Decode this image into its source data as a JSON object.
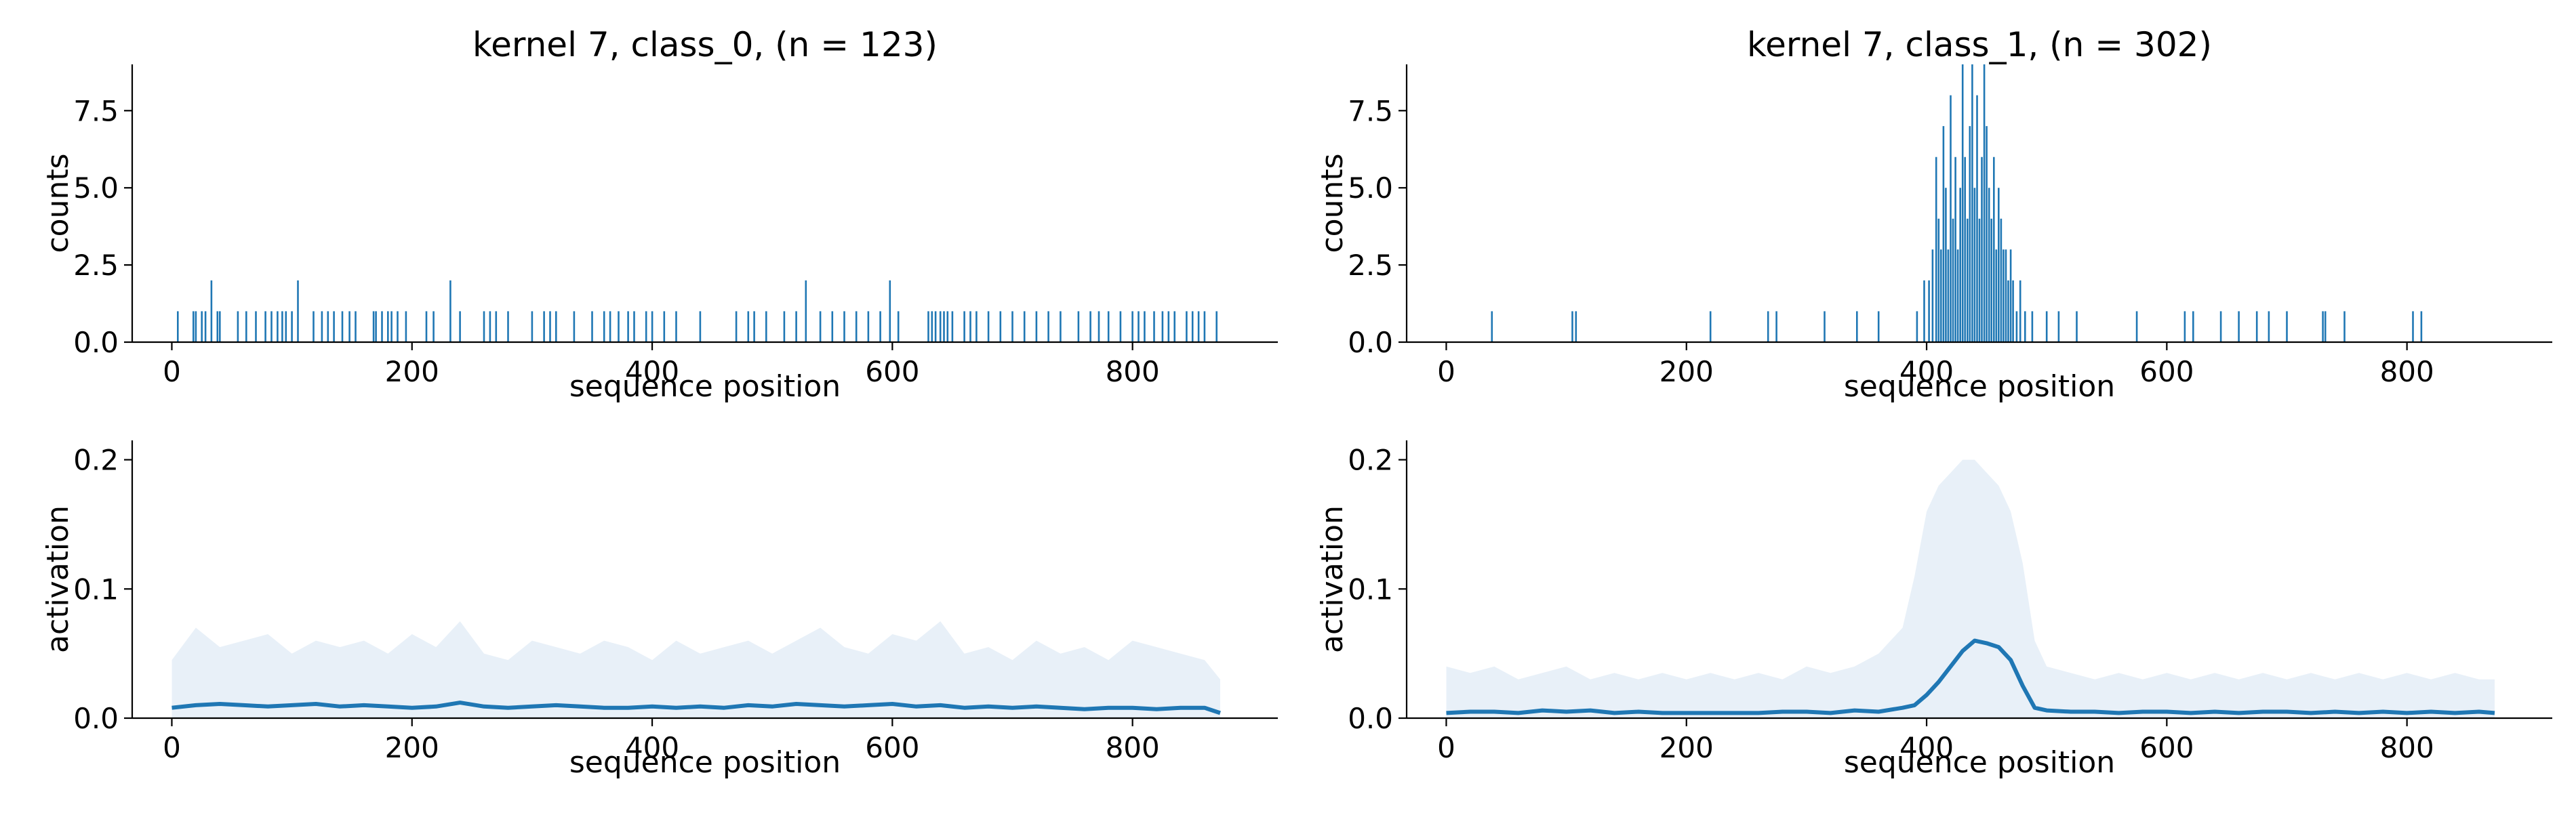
{
  "chart_data": [
    {
      "type": "bar",
      "panel": "class0-counts",
      "title": "kernel 7, class_0, (n = 123)",
      "xlabel": "sequence position",
      "ylabel": "counts",
      "xlim": [
        -33,
        921
      ],
      "ylim": [
        0,
        9.0
      ],
      "xticks": [
        0,
        200,
        400,
        600,
        800
      ],
      "yticks": [
        0.0,
        2.5,
        5.0,
        7.5
      ],
      "ytick_labels": [
        "0.0",
        "2.5",
        "5.0",
        "7.5"
      ],
      "color": "#1f77b4",
      "grid": false,
      "x": [
        5,
        18,
        20,
        25,
        28,
        33,
        38,
        40,
        55,
        62,
        70,
        78,
        83,
        88,
        92,
        95,
        100,
        105,
        118,
        125,
        130,
        135,
        142,
        148,
        153,
        168,
        170,
        175,
        180,
        183,
        188,
        195,
        212,
        218,
        232,
        240,
        260,
        265,
        270,
        280,
        300,
        310,
        315,
        320,
        335,
        350,
        360,
        365,
        372,
        380,
        385,
        395,
        400,
        410,
        420,
        440,
        470,
        480,
        485,
        495,
        510,
        520,
        528,
        540,
        550,
        560,
        570,
        580,
        590,
        598,
        605,
        630,
        633,
        636,
        640,
        643,
        646,
        650,
        660,
        665,
        670,
        680,
        690,
        700,
        710,
        720,
        730,
        740,
        755,
        765,
        772,
        780,
        790,
        800,
        805,
        810,
        818,
        825,
        830,
        835,
        845,
        850,
        855,
        860,
        870
      ],
      "values": [
        1,
        1,
        1,
        1,
        1,
        2,
        1,
        1,
        1,
        1,
        1,
        1,
        1,
        1,
        1,
        1,
        1,
        2,
        1,
        1,
        1,
        1,
        1,
        1,
        1,
        1,
        1,
        1,
        1,
        1,
        1,
        1,
        1,
        1,
        2,
        1,
        1,
        1,
        1,
        1,
        1,
        1,
        1,
        1,
        1,
        1,
        1,
        1,
        1,
        1,
        1,
        1,
        1,
        1,
        1,
        1,
        1,
        1,
        1,
        1,
        1,
        1,
        2,
        1,
        1,
        1,
        1,
        1,
        1,
        2,
        1,
        1,
        1,
        1,
        1,
        1,
        1,
        1,
        1,
        1,
        1,
        1,
        1,
        1,
        1,
        1,
        1,
        1,
        1,
        1,
        1,
        1,
        1,
        1,
        1,
        1,
        1,
        1,
        1,
        1,
        1,
        1,
        1,
        1,
        1
      ]
    },
    {
      "type": "bar",
      "panel": "class1-counts",
      "title": "kernel 7, class_1, (n = 302)",
      "xlabel": "sequence position",
      "ylabel": "counts",
      "xlim": [
        -33,
        921
      ],
      "ylim": [
        0,
        9.0
      ],
      "xticks": [
        0,
        200,
        400,
        600,
        800
      ],
      "yticks": [
        0.0,
        2.5,
        5.0,
        7.5
      ],
      "ytick_labels": [
        "0.0",
        "2.5",
        "5.0",
        "7.5"
      ],
      "color": "#1f77b4",
      "grid": false,
      "x": [
        38,
        105,
        108,
        220,
        268,
        275,
        315,
        342,
        360,
        392,
        398,
        402,
        405,
        408,
        410,
        412,
        414,
        416,
        418,
        420,
        422,
        424,
        426,
        428,
        430,
        432,
        434,
        436,
        438,
        440,
        442,
        444,
        446,
        448,
        450,
        452,
        454,
        456,
        458,
        460,
        462,
        464,
        466,
        468,
        470,
        472,
        475,
        478,
        482,
        488,
        500,
        510,
        525,
        575,
        615,
        622,
        645,
        660,
        675,
        685,
        700,
        730,
        732,
        748,
        805,
        812
      ],
      "values": [
        1,
        1,
        1,
        1,
        1,
        1,
        1,
        1,
        1,
        1,
        2,
        2,
        3,
        6,
        4,
        3,
        7,
        5,
        3,
        8,
        4,
        6,
        3,
        5,
        9,
        6,
        4,
        7,
        9,
        5,
        8,
        4,
        6,
        9,
        7,
        5,
        4,
        6,
        3,
        5,
        4,
        3,
        3,
        2,
        3,
        2,
        1,
        2,
        1,
        1,
        1,
        1,
        1,
        1,
        1,
        1,
        1,
        1,
        1,
        1,
        1,
        1,
        1,
        1,
        1,
        1
      ]
    },
    {
      "type": "area",
      "panel": "class0-activation",
      "xlabel": "sequence position",
      "ylabel": "activation",
      "xlim": [
        -33,
        921
      ],
      "ylim": [
        0,
        0.215
      ],
      "xticks": [
        0,
        200,
        400,
        600,
        800
      ],
      "yticks": [
        0.0,
        0.1,
        0.2
      ],
      "ytick_labels": [
        "0.0",
        "0.1",
        "0.2"
      ],
      "mean_color": "#1f77b4",
      "band_color": "#e8f0f8",
      "grid": false,
      "x": [
        0,
        20,
        40,
        60,
        80,
        100,
        120,
        140,
        160,
        180,
        200,
        220,
        240,
        260,
        280,
        300,
        320,
        340,
        360,
        380,
        400,
        420,
        440,
        460,
        480,
        500,
        520,
        540,
        560,
        580,
        600,
        620,
        640,
        660,
        680,
        700,
        720,
        740,
        760,
        780,
        800,
        820,
        840,
        860,
        873
      ],
      "mean": [
        0.008,
        0.01,
        0.011,
        0.01,
        0.009,
        0.01,
        0.011,
        0.009,
        0.01,
        0.009,
        0.008,
        0.009,
        0.012,
        0.009,
        0.008,
        0.009,
        0.01,
        0.009,
        0.008,
        0.008,
        0.009,
        0.008,
        0.009,
        0.008,
        0.01,
        0.009,
        0.011,
        0.01,
        0.009,
        0.01,
        0.011,
        0.009,
        0.01,
        0.008,
        0.009,
        0.008,
        0.009,
        0.008,
        0.007,
        0.008,
        0.008,
        0.007,
        0.008,
        0.008,
        0.004
      ],
      "band_upper": [
        0.045,
        0.07,
        0.055,
        0.06,
        0.065,
        0.05,
        0.06,
        0.055,
        0.06,
        0.05,
        0.065,
        0.055,
        0.075,
        0.05,
        0.045,
        0.06,
        0.055,
        0.05,
        0.06,
        0.055,
        0.045,
        0.06,
        0.05,
        0.055,
        0.06,
        0.05,
        0.06,
        0.07,
        0.055,
        0.05,
        0.065,
        0.06,
        0.075,
        0.05,
        0.055,
        0.045,
        0.06,
        0.05,
        0.055,
        0.045,
        0.06,
        0.055,
        0.05,
        0.045,
        0.03
      ]
    },
    {
      "type": "area",
      "panel": "class1-activation",
      "xlabel": "sequence position",
      "ylabel": "activation",
      "xlim": [
        -33,
        921
      ],
      "ylim": [
        0,
        0.215
      ],
      "xticks": [
        0,
        200,
        400,
        600,
        800
      ],
      "yticks": [
        0.0,
        0.1,
        0.2
      ],
      "ytick_labels": [
        "0.0",
        "0.1",
        "0.2"
      ],
      "mean_color": "#1f77b4",
      "band_color": "#e8f0f8",
      "grid": false,
      "x": [
        0,
        20,
        40,
        60,
        80,
        100,
        120,
        140,
        160,
        180,
        200,
        220,
        240,
        260,
        280,
        300,
        320,
        340,
        360,
        380,
        390,
        400,
        410,
        420,
        430,
        440,
        450,
        460,
        470,
        480,
        490,
        500,
        520,
        540,
        560,
        580,
        600,
        620,
        640,
        660,
        680,
        700,
        720,
        740,
        760,
        780,
        800,
        820,
        840,
        860,
        873
      ],
      "mean": [
        0.004,
        0.005,
        0.005,
        0.004,
        0.006,
        0.005,
        0.006,
        0.004,
        0.005,
        0.004,
        0.004,
        0.004,
        0.004,
        0.004,
        0.005,
        0.005,
        0.004,
        0.006,
        0.005,
        0.008,
        0.01,
        0.018,
        0.028,
        0.04,
        0.052,
        0.06,
        0.058,
        0.055,
        0.045,
        0.025,
        0.008,
        0.006,
        0.005,
        0.005,
        0.004,
        0.005,
        0.005,
        0.004,
        0.005,
        0.004,
        0.005,
        0.005,
        0.004,
        0.005,
        0.004,
        0.005,
        0.004,
        0.005,
        0.004,
        0.005,
        0.004
      ],
      "band_upper": [
        0.04,
        0.035,
        0.04,
        0.03,
        0.035,
        0.04,
        0.03,
        0.035,
        0.03,
        0.035,
        0.03,
        0.035,
        0.03,
        0.035,
        0.03,
        0.04,
        0.035,
        0.04,
        0.05,
        0.07,
        0.11,
        0.16,
        0.18,
        0.19,
        0.2,
        0.2,
        0.19,
        0.18,
        0.16,
        0.12,
        0.06,
        0.04,
        0.035,
        0.03,
        0.035,
        0.03,
        0.035,
        0.03,
        0.035,
        0.03,
        0.035,
        0.03,
        0.035,
        0.03,
        0.035,
        0.03,
        0.035,
        0.03,
        0.035,
        0.03,
        0.03
      ]
    }
  ]
}
